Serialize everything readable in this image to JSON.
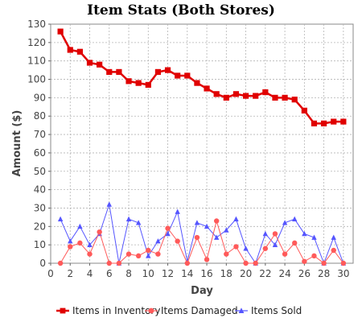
{
  "chart_data": {
    "type": "line",
    "title": "Item Stats (Both Stores)",
    "xlabel": "Day",
    "ylabel": "Amount ($)",
    "xlim": [
      0,
      31
    ],
    "ylim": [
      0,
      130
    ],
    "x_ticks": [
      0,
      2,
      4,
      6,
      8,
      10,
      12,
      14,
      16,
      18,
      20,
      22,
      24,
      26,
      28,
      30
    ],
    "y_ticks": [
      0,
      10,
      20,
      30,
      40,
      50,
      60,
      70,
      80,
      90,
      100,
      110,
      120,
      130
    ],
    "grid": true,
    "legend_position": "bottom",
    "x": [
      1,
      2,
      3,
      4,
      5,
      6,
      7,
      8,
      9,
      10,
      11,
      12,
      13,
      14,
      15,
      16,
      17,
      18,
      19,
      20,
      21,
      22,
      23,
      24,
      25,
      26,
      27,
      28,
      29,
      30
    ],
    "series": [
      {
        "name": "Items in Inventory",
        "color": "#e00000",
        "marker": "square",
        "values": [
          126,
          116,
          115,
          109,
          108,
          104,
          104,
          99,
          98,
          97,
          104,
          105,
          102,
          102,
          98,
          95,
          92,
          90,
          92,
          91,
          91,
          93,
          90,
          90,
          89,
          83,
          76,
          76,
          77,
          77
        ]
      },
      {
        "name": "Items Damaged",
        "color": "#ff5a5a",
        "marker": "circle",
        "values": [
          0,
          9,
          11,
          5,
          17,
          0,
          0,
          5,
          4,
          7,
          5,
          19,
          12,
          0,
          14,
          2,
          23,
          5,
          9,
          0,
          0,
          8,
          16,
          5,
          11,
          1,
          4,
          0,
          7,
          0
        ]
      },
      {
        "name": "Items Sold",
        "color": "#5555ff",
        "marker": "triangle",
        "values": [
          24,
          12,
          20,
          10,
          16,
          32,
          0,
          24,
          22,
          4,
          12,
          16,
          28,
          1,
          22,
          20,
          14,
          18,
          24,
          8,
          0,
          16,
          10,
          22,
          24,
          16,
          14,
          0,
          14,
          0
        ]
      }
    ]
  }
}
